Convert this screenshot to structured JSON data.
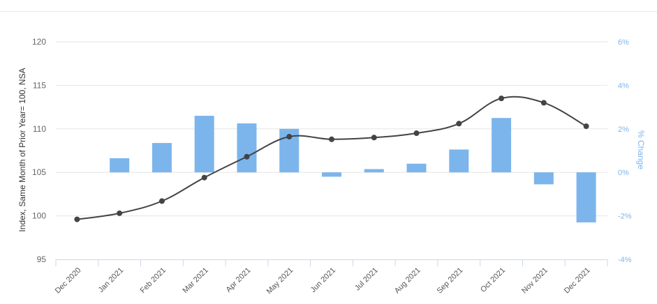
{
  "chart_data": {
    "type": "bar",
    "categories": [
      "Dec 2020",
      "Jan 2021",
      "Feb 2021",
      "Mar 2021",
      "Apr 2021",
      "May 2021",
      "Jun 2021",
      "Jul 2021",
      "Aug 2021",
      "Sep 2021",
      "Oct 2021",
      "Nov 2021",
      "Dec 2021"
    ],
    "series": [
      {
        "type": "line",
        "axis": "left",
        "color": "#434348",
        "values": [
          99.6,
          100.3,
          101.7,
          104.4,
          106.8,
          109.1,
          108.8,
          109.0,
          109.5,
          110.6,
          113.5,
          113.0,
          110.3
        ]
      },
      {
        "type": "bar",
        "axis": "right",
        "color": "#7cb5ec",
        "values": [
          null,
          0.65,
          1.35,
          2.6,
          2.25,
          2.0,
          -0.2,
          0.15,
          0.4,
          1.05,
          2.5,
          -0.55,
          -2.3
        ]
      }
    ],
    "y_left": {
      "label": "Index, Same Month of Prior Year= 100, NSA",
      "range": [
        95,
        120
      ],
      "ticks": [
        "95",
        "100",
        "105",
        "110",
        "115",
        "120"
      ]
    },
    "y_right": {
      "label": "% Change",
      "range": [
        -4,
        6
      ],
      "ticks": [
        "-4%",
        "-2%",
        "0%",
        "2%",
        "4%",
        "6%"
      ]
    },
    "grid": true,
    "legend": "none"
  }
}
